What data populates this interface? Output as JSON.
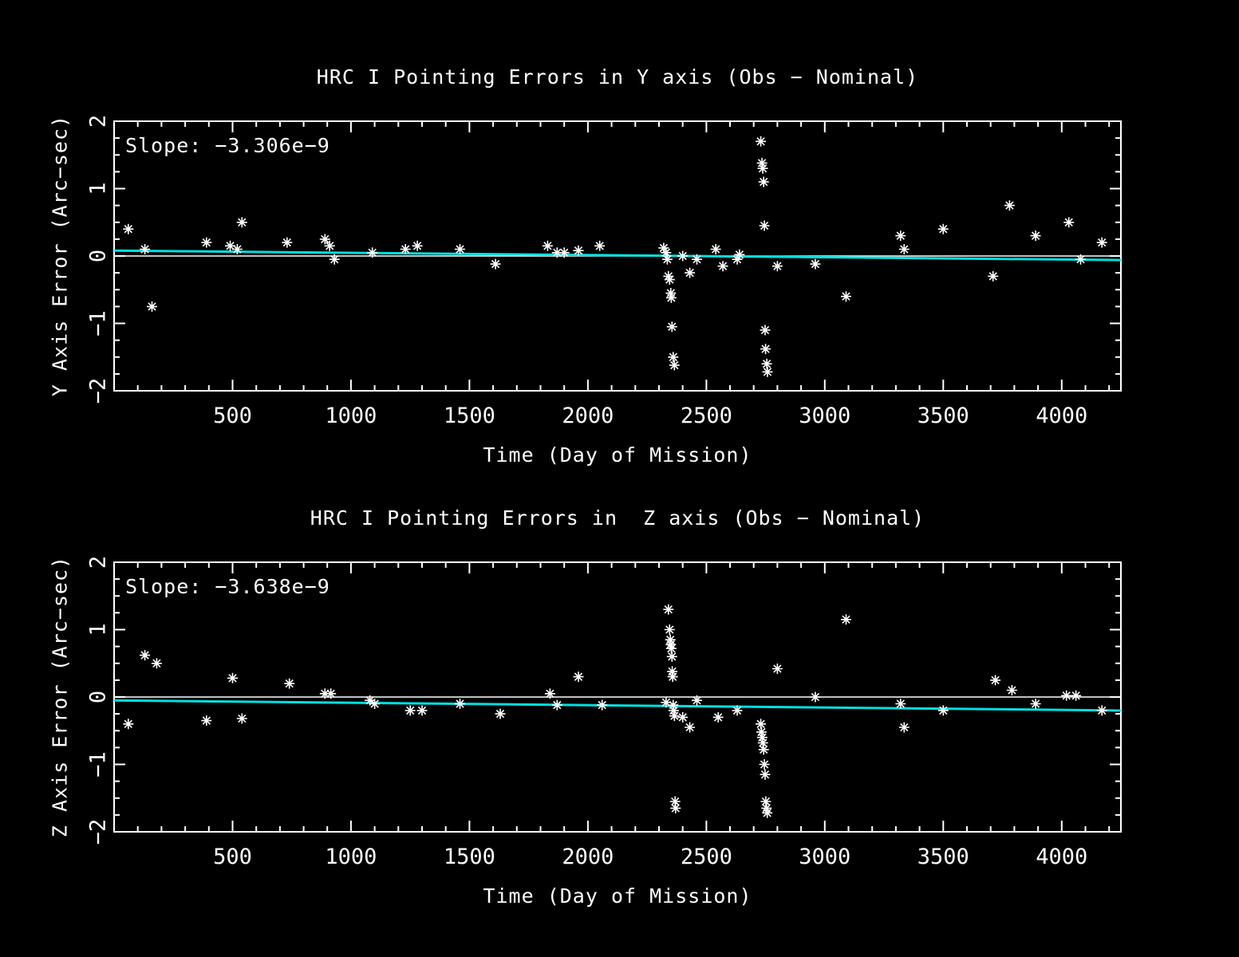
{
  "page": {
    "background": "#000000"
  },
  "colors": {
    "foreground": "#ffffff",
    "marker": "#ffffff",
    "trend": "#00e0e0"
  },
  "chart_data": [
    {
      "type": "scatter",
      "title": "HRC I Pointing Errors in Y axis (Obs − Nominal)",
      "slope_label": "Slope: −3.306e−9",
      "xlabel": "Time (Day of Mission)",
      "ylabel": "Y Axis Error (Arc−sec)",
      "xlim": [
        0,
        4250
      ],
      "ylim": [
        -2,
        2
      ],
      "xticks": [
        500,
        1000,
        1500,
        2000,
        2500,
        3000,
        3500,
        4000
      ],
      "yticks": [
        -2,
        -1,
        0,
        1,
        2
      ],
      "xmajor": 500,
      "xminor": 100,
      "yminor": 0.25,
      "zero_line": 0,
      "trend": {
        "x0": 0,
        "y0": 0.08,
        "x1": 4250,
        "y1": -0.06
      },
      "points": [
        [
          60,
          0.4
        ],
        [
          130,
          0.1
        ],
        [
          160,
          -0.75
        ],
        [
          390,
          0.2
        ],
        [
          490,
          0.15
        ],
        [
          520,
          0.1
        ],
        [
          540,
          0.5
        ],
        [
          730,
          0.2
        ],
        [
          890,
          0.25
        ],
        [
          910,
          0.15
        ],
        [
          930,
          -0.05
        ],
        [
          1090,
          0.05
        ],
        [
          1230,
          0.1
        ],
        [
          1280,
          0.15
        ],
        [
          1460,
          0.1
        ],
        [
          1610,
          -0.12
        ],
        [
          1830,
          0.15
        ],
        [
          1870,
          0.05
        ],
        [
          1900,
          0.05
        ],
        [
          1960,
          0.08
        ],
        [
          2050,
          0.15
        ],
        [
          2320,
          0.12
        ],
        [
          2330,
          0.05
        ],
        [
          2335,
          -0.05
        ],
        [
          2340,
          -0.3
        ],
        [
          2345,
          -0.35
        ],
        [
          2350,
          -0.55
        ],
        [
          2352,
          -0.62
        ],
        [
          2355,
          -1.05
        ],
        [
          2360,
          -1.5
        ],
        [
          2365,
          -1.62
        ],
        [
          2400,
          0.0
        ],
        [
          2430,
          -0.25
        ],
        [
          2460,
          -0.05
        ],
        [
          2540,
          0.1
        ],
        [
          2570,
          -0.15
        ],
        [
          2630,
          -0.05
        ],
        [
          2640,
          0.02
        ],
        [
          2730,
          1.7
        ],
        [
          2735,
          1.38
        ],
        [
          2738,
          1.3
        ],
        [
          2742,
          1.1
        ],
        [
          2745,
          0.45
        ],
        [
          2748,
          -1.1
        ],
        [
          2750,
          -1.38
        ],
        [
          2755,
          -1.6
        ],
        [
          2758,
          -1.72
        ],
        [
          2800,
          -0.15
        ],
        [
          2960,
          -0.12
        ],
        [
          3090,
          -0.6
        ],
        [
          3320,
          0.3
        ],
        [
          3335,
          0.1
        ],
        [
          3500,
          0.4
        ],
        [
          3710,
          -0.3
        ],
        [
          3780,
          0.75
        ],
        [
          3890,
          0.3
        ],
        [
          4030,
          0.5
        ],
        [
          4080,
          -0.05
        ],
        [
          4170,
          0.2
        ]
      ]
    },
    {
      "type": "scatter",
      "title": "HRC I Pointing Errors in  Z axis (Obs − Nominal)",
      "slope_label": "Slope: −3.638e−9",
      "xlabel": "Time (Day of Mission)",
      "ylabel": "Z Axis Error (Arc−sec)",
      "xlim": [
        0,
        4250
      ],
      "ylim": [
        -2,
        2
      ],
      "xticks": [
        500,
        1000,
        1500,
        2000,
        2500,
        3000,
        3500,
        4000
      ],
      "yticks": [
        -2,
        -1,
        0,
        1,
        2
      ],
      "xmajor": 500,
      "xminor": 100,
      "yminor": 0.25,
      "zero_line": 0,
      "trend": {
        "x0": 0,
        "y0": -0.05,
        "x1": 4250,
        "y1": -0.2
      },
      "points": [
        [
          60,
          -0.4
        ],
        [
          130,
          0.62
        ],
        [
          180,
          0.5
        ],
        [
          390,
          -0.35
        ],
        [
          500,
          0.28
        ],
        [
          540,
          -0.32
        ],
        [
          740,
          0.2
        ],
        [
          890,
          0.05
        ],
        [
          915,
          0.05
        ],
        [
          1080,
          -0.05
        ],
        [
          1100,
          -0.1
        ],
        [
          1250,
          -0.2
        ],
        [
          1300,
          -0.2
        ],
        [
          1460,
          -0.1
        ],
        [
          1630,
          -0.25
        ],
        [
          1840,
          0.05
        ],
        [
          1870,
          -0.12
        ],
        [
          1960,
          0.3
        ],
        [
          2060,
          -0.12
        ],
        [
          2330,
          -0.08
        ],
        [
          2340,
          1.3
        ],
        [
          2345,
          1.0
        ],
        [
          2348,
          0.85
        ],
        [
          2350,
          0.78
        ],
        [
          2352,
          0.72
        ],
        [
          2355,
          0.6
        ],
        [
          2356,
          0.38
        ],
        [
          2358,
          0.3
        ],
        [
          2360,
          -0.12
        ],
        [
          2362,
          -0.2
        ],
        [
          2365,
          -0.28
        ],
        [
          2368,
          -1.55
        ],
        [
          2370,
          -1.65
        ],
        [
          2400,
          -0.3
        ],
        [
          2430,
          -0.45
        ],
        [
          2460,
          -0.05
        ],
        [
          2550,
          -0.3
        ],
        [
          2630,
          -0.2
        ],
        [
          2730,
          -0.4
        ],
        [
          2733,
          -0.52
        ],
        [
          2736,
          -0.6
        ],
        [
          2739,
          -0.68
        ],
        [
          2742,
          -0.78
        ],
        [
          2745,
          -1.0
        ],
        [
          2748,
          -1.15
        ],
        [
          2751,
          -1.55
        ],
        [
          2754,
          -1.65
        ],
        [
          2757,
          -1.72
        ],
        [
          2800,
          0.42
        ],
        [
          2960,
          0.0
        ],
        [
          3090,
          1.15
        ],
        [
          3320,
          -0.1
        ],
        [
          3335,
          -0.45
        ],
        [
          3500,
          -0.2
        ],
        [
          3720,
          0.25
        ],
        [
          3790,
          0.1
        ],
        [
          3890,
          -0.1
        ],
        [
          4020,
          0.02
        ],
        [
          4060,
          0.02
        ],
        [
          4170,
          -0.2
        ]
      ]
    }
  ]
}
